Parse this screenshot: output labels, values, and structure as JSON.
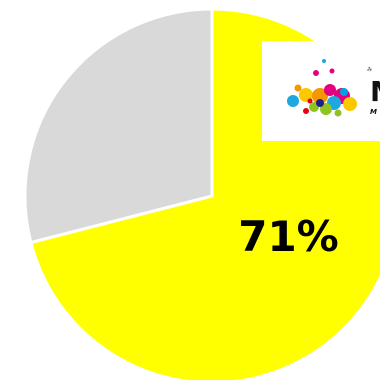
{
  "chart_data": {
    "type": "pie",
    "values": [
      71,
      29
    ],
    "colors": [
      "#ffff00",
      "#d9d9d9"
    ],
    "labels": [
      "71%",
      ""
    ],
    "start": "12 o'clock",
    "direction": "clockwise",
    "slice_border": "#ffffff"
  },
  "logo": {
    "small_text": "み",
    "letter": "M",
    "sub_text": "M"
  }
}
